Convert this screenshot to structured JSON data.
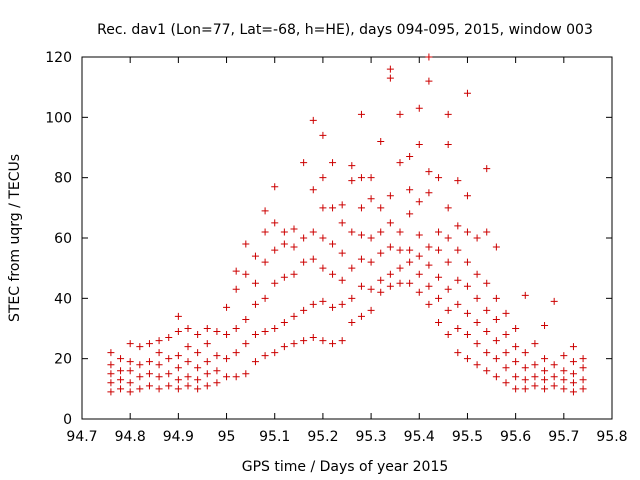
{
  "chart_data": {
    "type": "scatter",
    "title": "Rec. dav1 (Lon=77, Lat=-68, h=HE), days 094-095, 2015, window 003",
    "xlabel": "GPS time / Days of year 2015",
    "ylabel": "STEC from uqrg / TECUs",
    "xlim": [
      94.7,
      95.8
    ],
    "ylim": [
      0,
      120
    ],
    "xticks": [
      "94.7",
      "94.8",
      "94.9",
      "95",
      "95.1",
      "95.2",
      "95.3",
      "95.4",
      "95.5",
      "95.6",
      "95.7",
      "95.8"
    ],
    "yticks": [
      "0",
      "20",
      "40",
      "60",
      "80",
      "100",
      "120"
    ],
    "grid": false,
    "marker": "plus",
    "color": "#cc0000",
    "series": [
      {
        "points": [
          [
            94.76,
            9
          ],
          [
            94.76,
            12
          ],
          [
            94.76,
            15
          ],
          [
            94.76,
            18
          ],
          [
            94.76,
            22
          ],
          [
            94.78,
            10
          ],
          [
            94.78,
            13
          ],
          [
            94.78,
            16
          ],
          [
            94.78,
            20
          ],
          [
            94.8,
            9
          ],
          [
            94.8,
            12
          ],
          [
            94.8,
            16
          ],
          [
            94.8,
            19
          ],
          [
            94.8,
            25
          ],
          [
            94.82,
            10
          ],
          [
            94.82,
            14
          ],
          [
            94.82,
            18
          ],
          [
            94.82,
            24
          ],
          [
            94.84,
            11
          ],
          [
            94.84,
            15
          ],
          [
            94.84,
            19
          ],
          [
            94.84,
            25
          ],
          [
            94.86,
            10
          ],
          [
            94.86,
            14
          ],
          [
            94.86,
            18
          ],
          [
            94.86,
            22
          ],
          [
            94.86,
            26
          ],
          [
            94.88,
            11
          ],
          [
            94.88,
            15
          ],
          [
            94.88,
            20
          ],
          [
            94.88,
            27
          ],
          [
            94.9,
            10
          ],
          [
            94.9,
            13
          ],
          [
            94.9,
            17
          ],
          [
            94.9,
            21
          ],
          [
            94.9,
            29
          ],
          [
            94.9,
            34
          ],
          [
            94.92,
            11
          ],
          [
            94.92,
            14
          ],
          [
            94.92,
            19
          ],
          [
            94.92,
            24
          ],
          [
            94.92,
            30
          ],
          [
            94.94,
            10
          ],
          [
            94.94,
            13
          ],
          [
            94.94,
            17
          ],
          [
            94.94,
            22
          ],
          [
            94.94,
            28
          ],
          [
            94.96,
            11
          ],
          [
            94.96,
            15
          ],
          [
            94.96,
            19
          ],
          [
            94.96,
            25
          ],
          [
            94.96,
            30
          ],
          [
            94.98,
            12
          ],
          [
            94.98,
            16
          ],
          [
            94.98,
            21
          ],
          [
            94.98,
            29
          ],
          [
            95.0,
            14
          ],
          [
            95.0,
            20
          ],
          [
            95.0,
            28
          ],
          [
            95.0,
            37
          ],
          [
            95.02,
            14
          ],
          [
            95.02,
            22
          ],
          [
            95.02,
            30
          ],
          [
            95.02,
            43
          ],
          [
            95.02,
            49
          ],
          [
            95.04,
            15
          ],
          [
            95.04,
            25
          ],
          [
            95.04,
            33
          ],
          [
            95.04,
            48
          ],
          [
            95.04,
            58
          ],
          [
            95.06,
            19
          ],
          [
            95.06,
            28
          ],
          [
            95.06,
            38
          ],
          [
            95.06,
            45
          ],
          [
            95.06,
            54
          ],
          [
            95.08,
            21
          ],
          [
            95.08,
            29
          ],
          [
            95.08,
            40
          ],
          [
            95.08,
            52
          ],
          [
            95.08,
            62
          ],
          [
            95.08,
            69
          ],
          [
            95.1,
            22
          ],
          [
            95.1,
            30
          ],
          [
            95.1,
            45
          ],
          [
            95.1,
            56
          ],
          [
            95.1,
            65
          ],
          [
            95.1,
            77
          ],
          [
            95.12,
            24
          ],
          [
            95.12,
            32
          ],
          [
            95.12,
            47
          ],
          [
            95.12,
            58
          ],
          [
            95.12,
            62
          ],
          [
            95.14,
            25
          ],
          [
            95.14,
            34
          ],
          [
            95.14,
            48
          ],
          [
            95.14,
            57
          ],
          [
            95.14,
            63
          ],
          [
            95.16,
            26
          ],
          [
            95.16,
            36
          ],
          [
            95.16,
            52
          ],
          [
            95.16,
            60
          ],
          [
            95.16,
            85
          ],
          [
            95.18,
            27
          ],
          [
            95.18,
            38
          ],
          [
            95.18,
            53
          ],
          [
            95.18,
            62
          ],
          [
            95.18,
            76
          ],
          [
            95.18,
            99
          ],
          [
            95.2,
            26
          ],
          [
            95.2,
            39
          ],
          [
            95.2,
            50
          ],
          [
            95.2,
            60
          ],
          [
            95.2,
            70
          ],
          [
            95.2,
            80
          ],
          [
            95.2,
            94
          ],
          [
            95.22,
            25
          ],
          [
            95.22,
            37
          ],
          [
            95.22,
            48
          ],
          [
            95.22,
            58
          ],
          [
            95.22,
            70
          ],
          [
            95.22,
            85
          ],
          [
            95.24,
            26
          ],
          [
            95.24,
            38
          ],
          [
            95.24,
            46
          ],
          [
            95.24,
            55
          ],
          [
            95.24,
            65
          ],
          [
            95.24,
            71
          ],
          [
            95.26,
            32
          ],
          [
            95.26,
            40
          ],
          [
            95.26,
            50
          ],
          [
            95.26,
            62
          ],
          [
            95.26,
            79
          ],
          [
            95.26,
            84
          ],
          [
            95.28,
            34
          ],
          [
            95.28,
            44
          ],
          [
            95.28,
            53
          ],
          [
            95.28,
            61
          ],
          [
            95.28,
            70
          ],
          [
            95.28,
            80
          ],
          [
            95.28,
            101
          ],
          [
            95.3,
            36
          ],
          [
            95.3,
            43
          ],
          [
            95.3,
            52
          ],
          [
            95.3,
            60
          ],
          [
            95.3,
            73
          ],
          [
            95.3,
            80
          ],
          [
            95.32,
            42
          ],
          [
            95.32,
            46
          ],
          [
            95.32,
            55
          ],
          [
            95.32,
            62
          ],
          [
            95.32,
            70
          ],
          [
            95.32,
            92
          ],
          [
            95.34,
            44
          ],
          [
            95.34,
            48
          ],
          [
            95.34,
            57
          ],
          [
            95.34,
            65
          ],
          [
            95.34,
            74
          ],
          [
            95.34,
            113
          ],
          [
            95.34,
            116
          ],
          [
            95.36,
            45
          ],
          [
            95.36,
            50
          ],
          [
            95.36,
            56
          ],
          [
            95.36,
            62
          ],
          [
            95.36,
            85
          ],
          [
            95.36,
            101
          ],
          [
            95.38,
            45
          ],
          [
            95.38,
            52
          ],
          [
            95.38,
            56
          ],
          [
            95.38,
            68
          ],
          [
            95.38,
            76
          ],
          [
            95.38,
            87
          ],
          [
            95.4,
            42
          ],
          [
            95.4,
            48
          ],
          [
            95.4,
            54
          ],
          [
            95.4,
            61
          ],
          [
            95.4,
            72
          ],
          [
            95.4,
            91
          ],
          [
            95.4,
            103
          ],
          [
            95.42,
            38
          ],
          [
            95.42,
            44
          ],
          [
            95.42,
            51
          ],
          [
            95.42,
            57
          ],
          [
            95.42,
            75
          ],
          [
            95.42,
            82
          ],
          [
            95.42,
            112
          ],
          [
            95.42,
            120
          ],
          [
            95.44,
            32
          ],
          [
            95.44,
            40
          ],
          [
            95.44,
            47
          ],
          [
            95.44,
            56
          ],
          [
            95.44,
            62
          ],
          [
            95.44,
            80
          ],
          [
            95.46,
            28
          ],
          [
            95.46,
            36
          ],
          [
            95.46,
            43
          ],
          [
            95.46,
            52
          ],
          [
            95.46,
            60
          ],
          [
            95.46,
            70
          ],
          [
            95.46,
            91
          ],
          [
            95.46,
            101
          ],
          [
            95.48,
            22
          ],
          [
            95.48,
            30
          ],
          [
            95.48,
            38
          ],
          [
            95.48,
            46
          ],
          [
            95.48,
            56
          ],
          [
            95.48,
            64
          ],
          [
            95.48,
            79
          ],
          [
            95.5,
            20
          ],
          [
            95.5,
            28
          ],
          [
            95.5,
            35
          ],
          [
            95.5,
            44
          ],
          [
            95.5,
            52
          ],
          [
            95.5,
            62
          ],
          [
            95.5,
            74
          ],
          [
            95.5,
            108
          ],
          [
            95.52,
            18
          ],
          [
            95.52,
            25
          ],
          [
            95.52,
            32
          ],
          [
            95.52,
            40
          ],
          [
            95.52,
            48
          ],
          [
            95.52,
            60
          ],
          [
            95.54,
            16
          ],
          [
            95.54,
            22
          ],
          [
            95.54,
            29
          ],
          [
            95.54,
            36
          ],
          [
            95.54,
            45
          ],
          [
            95.54,
            62
          ],
          [
            95.54,
            83
          ],
          [
            95.56,
            14
          ],
          [
            95.56,
            20
          ],
          [
            95.56,
            26
          ],
          [
            95.56,
            33
          ],
          [
            95.56,
            40
          ],
          [
            95.56,
            57
          ],
          [
            95.58,
            12
          ],
          [
            95.58,
            17
          ],
          [
            95.58,
            22
          ],
          [
            95.58,
            28
          ],
          [
            95.58,
            35
          ],
          [
            95.6,
            10
          ],
          [
            95.6,
            14
          ],
          [
            95.6,
            19
          ],
          [
            95.6,
            24
          ],
          [
            95.6,
            30
          ],
          [
            95.62,
            10
          ],
          [
            95.62,
            13
          ],
          [
            95.62,
            17
          ],
          [
            95.62,
            22
          ],
          [
            95.62,
            41
          ],
          [
            95.64,
            11
          ],
          [
            95.64,
            14
          ],
          [
            95.64,
            18
          ],
          [
            95.64,
            25
          ],
          [
            95.66,
            10
          ],
          [
            95.66,
            13
          ],
          [
            95.66,
            16
          ],
          [
            95.66,
            20
          ],
          [
            95.66,
            31
          ],
          [
            95.68,
            11
          ],
          [
            95.68,
            14
          ],
          [
            95.68,
            18
          ],
          [
            95.68,
            39
          ],
          [
            95.7,
            10
          ],
          [
            95.7,
            13
          ],
          [
            95.7,
            16
          ],
          [
            95.7,
            21
          ],
          [
            95.72,
            9
          ],
          [
            95.72,
            12
          ],
          [
            95.72,
            15
          ],
          [
            95.72,
            19
          ],
          [
            95.72,
            24
          ],
          [
            95.74,
            10
          ],
          [
            95.74,
            13
          ],
          [
            95.74,
            17
          ],
          [
            95.74,
            20
          ]
        ]
      }
    ]
  }
}
